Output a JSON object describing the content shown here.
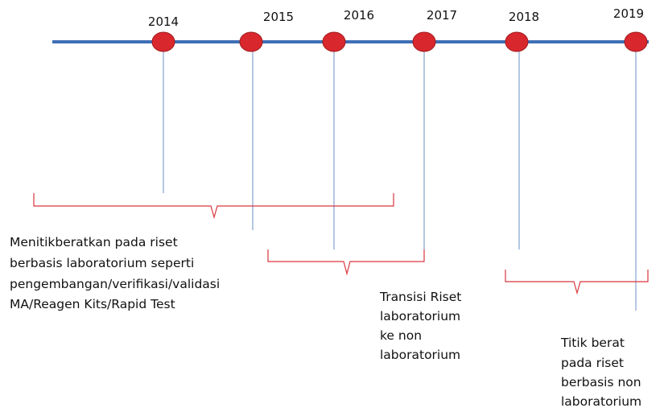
{
  "nodes": [
    {
      "year": "2014"
    },
    {
      "year": "2015"
    },
    {
      "year": "2016"
    },
    {
      "year": "2017"
    },
    {
      "year": "2018"
    },
    {
      "year": "2019"
    }
  ],
  "phases": [
    {
      "lines": [
        "Menitikberatkan pada riset",
        "berbasis laboratorium seperti",
        "pengembangan/verifikasi/validasi",
        "MA/Reagen Kits/Rapid Test"
      ]
    },
    {
      "lines": [
        "Transisi Riset",
        "laboratorium",
        "ke non",
        "laboratorium"
      ]
    },
    {
      "lines": [
        "Titik berat",
        "pada riset",
        "berbasis non",
        "laboratorium"
      ]
    }
  ]
}
